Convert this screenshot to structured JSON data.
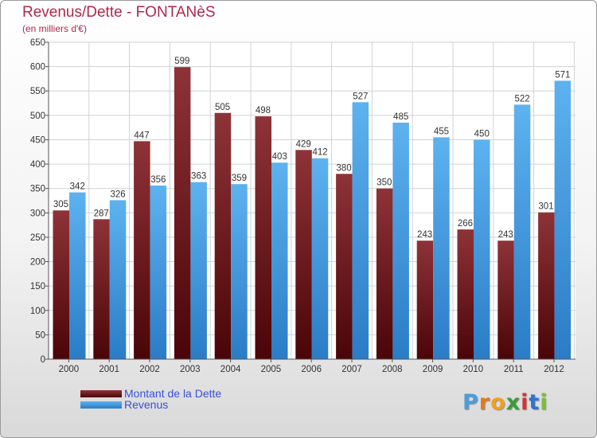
{
  "chart_data": {
    "type": "bar",
    "title": "Revenus/Dette - FONTANèS",
    "subtitle": "(en milliers d'€)",
    "xlabel": "",
    "ylabel": "",
    "ylim": [
      0,
      650
    ],
    "yticks": [
      0,
      50,
      100,
      150,
      200,
      250,
      300,
      350,
      400,
      450,
      500,
      550,
      600,
      650
    ],
    "grid": true,
    "legend_position": "bottom-left",
    "categories": [
      "2000",
      "2001",
      "2002",
      "2003",
      "2004",
      "2005",
      "2006",
      "2007",
      "2008",
      "2009",
      "2010",
      "2011",
      "2012"
    ],
    "series": [
      {
        "name": "Montant de la Dette",
        "color": "#7a1f24",
        "values": [
          305,
          287,
          447,
          599,
          505,
          498,
          429,
          380,
          350,
          243,
          266,
          243,
          301
        ]
      },
      {
        "name": "Revenus",
        "color": "#4da3e3",
        "values": [
          342,
          326,
          356,
          363,
          359,
          403,
          412,
          527,
          485,
          455,
          450,
          522,
          571
        ]
      }
    ]
  },
  "logo": {
    "text": "Proxiti",
    "letter_colors": [
      "#4e9cd8",
      "#e07b1f",
      "#f0a020",
      "#3c9a3c",
      "#d93030",
      "#2f74c9",
      "#7bbf3a"
    ]
  }
}
